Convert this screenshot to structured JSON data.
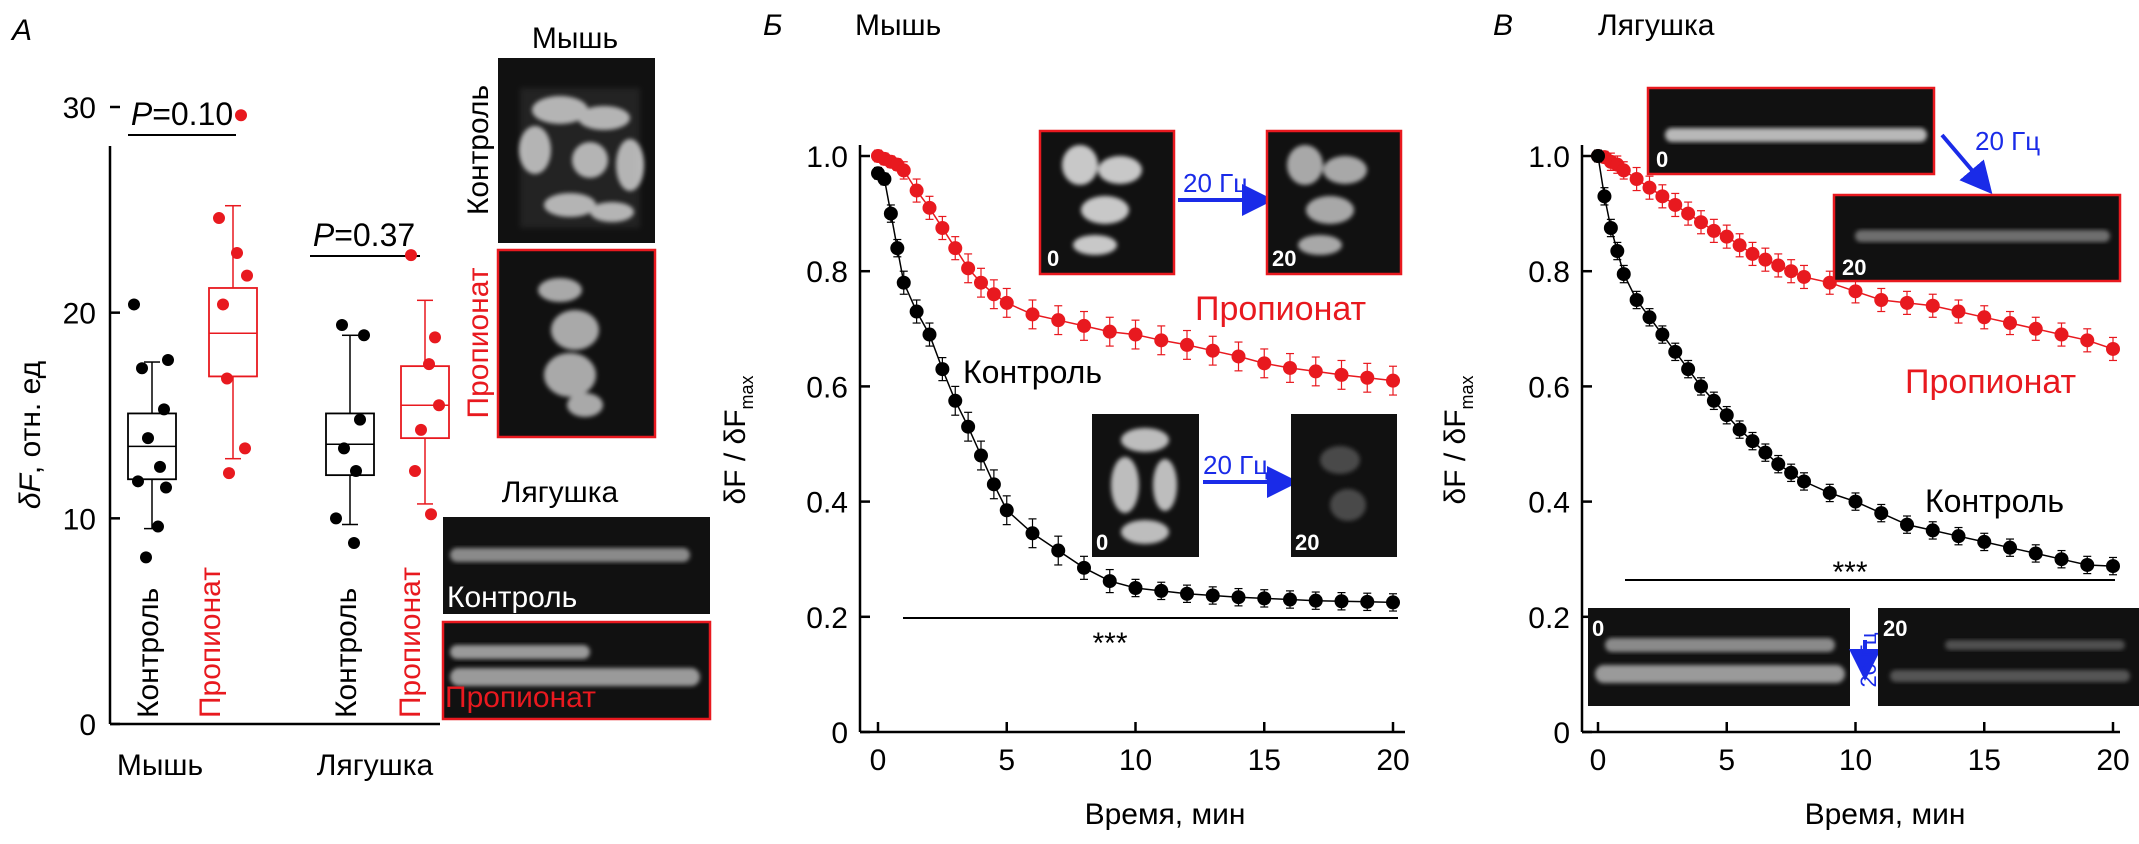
{
  "colors": {
    "control": "#000000",
    "propionate": "#e8191f",
    "arrow": "#1a2be8",
    "photo_border": "#e8191f"
  },
  "panel_a": {
    "letter": "А",
    "ylabel_var": "δF",
    "ylabel_rest": ", отн. ед",
    "yticks": [
      "0",
      "10",
      "20",
      "30"
    ],
    "groups": [
      "Мышь",
      "Лягушка"
    ],
    "bar_labels": [
      "Контроль",
      "Пропионат",
      "Контроль",
      "Пропионат"
    ],
    "p_values": [
      {
        "var": "P",
        "rest": "=0.10"
      },
      {
        "var": "P",
        "rest": "=0.37"
      }
    ],
    "images": {
      "mouse_title": "Мышь",
      "mouse_control": "Контроль",
      "mouse_propionate": "Пропионат",
      "frog_title": "Лягушка",
      "frog_control": "Контроль",
      "frog_propionate": "Пропионат"
    }
  },
  "panel_b": {
    "letter": "Б",
    "title": "Мышь",
    "series_labels": {
      "propionate": "Пропионат",
      "control": "Контроль"
    },
    "stim": "20 Гц",
    "frame_start": "0",
    "frame_end": "20",
    "significance": "***"
  },
  "panel_c": {
    "letter": "В",
    "title": "Лягушка",
    "series_labels": {
      "propionate": "Пропионат",
      "control": "Контроль"
    },
    "stim": "20 Гц",
    "frame_start": "0",
    "frame_end": "20",
    "significance": "***"
  },
  "shared": {
    "ylabel_main": "δF / δF",
    "ylabel_sub": "max",
    "xlabel": "Время, мин",
    "yticks": [
      "0",
      "0.2",
      "0.4",
      "0.6",
      "0.8",
      "1.0"
    ],
    "xticks": [
      "0",
      "5",
      "10",
      "15",
      "20"
    ]
  },
  "chart_data": [
    {
      "type": "box",
      "title": "",
      "ylabel": "δF, отн. ед",
      "ylim": [
        0,
        30
      ],
      "groups": [
        {
          "species": "Мышь",
          "condition": "Контроль",
          "whisker_low": 9.5,
          "q1": 11.9,
          "median": 13.5,
          "q3": 15.1,
          "whisker_high": 17.6,
          "mean": 13.5,
          "points": [
            20.4,
            17.7,
            17.3,
            15.3,
            13.9,
            12.5,
            11.8,
            11.5,
            9.6,
            8.1
          ]
        },
        {
          "species": "Мышь",
          "condition": "Пропионат",
          "whisker_low": 12.9,
          "q1": 16.9,
          "median": 19.0,
          "q3": 21.2,
          "whisker_high": 25.2,
          "mean": 19.0,
          "points": [
            29.6,
            24.6,
            22.9,
            21.8,
            20.4,
            16.8,
            13.4,
            12.2
          ]
        },
        {
          "species": "Лягушка",
          "condition": "Контроль",
          "whisker_low": 9.7,
          "q1": 12.1,
          "median": 13.6,
          "q3": 15.1,
          "whisker_high": 18.9,
          "mean": 13.6,
          "points": [
            19.4,
            18.9,
            14.8,
            13.4,
            12.3,
            10.0,
            8.8
          ]
        },
        {
          "species": "Лягушка",
          "condition": "Пропионат",
          "whisker_low": 10.7,
          "q1": 13.9,
          "median": 15.5,
          "q3": 17.4,
          "whisker_high": 20.6,
          "mean": 15.5,
          "points": [
            22.8,
            18.8,
            17.5,
            15.5,
            14.3,
            12.3,
            10.2
          ]
        }
      ],
      "comparisons": [
        {
          "groups": [
            "Мышь Контроль",
            "Мышь Пропионат"
          ],
          "p": "P=0.10"
        },
        {
          "groups": [
            "Лягушка Контроль",
            "Лягушка Пропионат"
          ],
          "p": "P=0.37"
        }
      ]
    },
    {
      "type": "line",
      "title": "Мышь",
      "xlabel": "Время, мин",
      "ylabel": "δF / δFmax",
      "xlim": [
        0,
        20
      ],
      "ylim": [
        0,
        1.05
      ],
      "series": [
        {
          "name": "Пропионат",
          "x": [
            0,
            0.25,
            0.5,
            0.75,
            1,
            1.5,
            2,
            2.5,
            3,
            3.5,
            4,
            4.5,
            5,
            6,
            7,
            8,
            9,
            10,
            11,
            12,
            13,
            14,
            15,
            16,
            17,
            18,
            19,
            20
          ],
          "y": [
            1.0,
            0.995,
            0.99,
            0.985,
            0.975,
            0.94,
            0.91,
            0.875,
            0.84,
            0.805,
            0.78,
            0.76,
            0.745,
            0.725,
            0.715,
            0.705,
            0.695,
            0.69,
            0.68,
            0.672,
            0.662,
            0.652,
            0.64,
            0.632,
            0.626,
            0.62,
            0.615,
            0.61
          ],
          "err": [
            0.01,
            0.01,
            0.01,
            0.01,
            0.015,
            0.02,
            0.02,
            0.02,
            0.02,
            0.025,
            0.025,
            0.025,
            0.025,
            0.025,
            0.025,
            0.025,
            0.025,
            0.025,
            0.025,
            0.025,
            0.025,
            0.025,
            0.025,
            0.025,
            0.025,
            0.025,
            0.025,
            0.025
          ]
        },
        {
          "name": "Контроль",
          "x": [
            0,
            0.25,
            0.5,
            0.75,
            1,
            1.5,
            2,
            2.5,
            3,
            3.5,
            4,
            4.5,
            5,
            6,
            7,
            8,
            9,
            10,
            11,
            12,
            13,
            14,
            15,
            16,
            17,
            18,
            19,
            20
          ],
          "y": [
            0.97,
            0.96,
            0.9,
            0.84,
            0.78,
            0.73,
            0.69,
            0.63,
            0.575,
            0.53,
            0.48,
            0.43,
            0.385,
            0.345,
            0.315,
            0.285,
            0.262,
            0.25,
            0.245,
            0.24,
            0.237,
            0.234,
            0.232,
            0.23,
            0.228,
            0.227,
            0.226,
            0.225
          ],
          "err": [
            0.01,
            0.01,
            0.015,
            0.015,
            0.02,
            0.02,
            0.02,
            0.02,
            0.025,
            0.025,
            0.025,
            0.025,
            0.025,
            0.025,
            0.025,
            0.02,
            0.02,
            0.015,
            0.015,
            0.015,
            0.015,
            0.015,
            0.015,
            0.015,
            0.015,
            0.015,
            0.015,
            0.015
          ]
        }
      ],
      "annotation": {
        "text": "***",
        "x_from": 1,
        "x_to": 20,
        "y": 0.195
      }
    },
    {
      "type": "line",
      "title": "Лягушка",
      "xlabel": "Время, мин",
      "ylabel": "δF / δFmax",
      "xlim": [
        0,
        20
      ],
      "ylim": [
        0,
        1.05
      ],
      "series": [
        {
          "name": "Пропионат",
          "x": [
            0,
            0.25,
            0.5,
            0.75,
            1,
            1.5,
            2,
            2.5,
            3,
            3.5,
            4,
            4.5,
            5,
            5.5,
            6,
            6.5,
            7,
            7.5,
            8,
            9,
            10,
            11,
            12,
            13,
            14,
            15,
            16,
            17,
            18,
            19,
            20
          ],
          "y": [
            1.0,
            0.998,
            0.99,
            0.985,
            0.975,
            0.96,
            0.945,
            0.93,
            0.915,
            0.9,
            0.885,
            0.87,
            0.86,
            0.845,
            0.83,
            0.82,
            0.81,
            0.8,
            0.79,
            0.78,
            0.765,
            0.75,
            0.745,
            0.74,
            0.73,
            0.72,
            0.71,
            0.7,
            0.69,
            0.68,
            0.665
          ],
          "err": [
            0.01,
            0.01,
            0.015,
            0.015,
            0.015,
            0.02,
            0.02,
            0.02,
            0.02,
            0.02,
            0.02,
            0.02,
            0.02,
            0.02,
            0.02,
            0.02,
            0.02,
            0.02,
            0.02,
            0.02,
            0.02,
            0.02,
            0.02,
            0.02,
            0.02,
            0.02,
            0.02,
            0.02,
            0.02,
            0.02,
            0.02
          ]
        },
        {
          "name": "Контроль",
          "x": [
            0,
            0.25,
            0.5,
            0.75,
            1,
            1.5,
            2,
            2.5,
            3,
            3.5,
            4,
            4.5,
            5,
            5.5,
            6,
            6.5,
            7,
            7.5,
            8,
            9,
            10,
            11,
            12,
            13,
            14,
            15,
            16,
            17,
            18,
            19,
            20
          ],
          "y": [
            1.0,
            0.93,
            0.875,
            0.835,
            0.795,
            0.75,
            0.72,
            0.69,
            0.66,
            0.63,
            0.6,
            0.575,
            0.55,
            0.525,
            0.505,
            0.485,
            0.465,
            0.45,
            0.435,
            0.415,
            0.4,
            0.38,
            0.36,
            0.35,
            0.34,
            0.33,
            0.32,
            0.31,
            0.3,
            0.29,
            0.288
          ],
          "err": [
            0.01,
            0.015,
            0.015,
            0.015,
            0.015,
            0.015,
            0.015,
            0.015,
            0.015,
            0.015,
            0.015,
            0.015,
            0.015,
            0.015,
            0.015,
            0.015,
            0.015,
            0.015,
            0.015,
            0.015,
            0.015,
            0.015,
            0.015,
            0.015,
            0.015,
            0.015,
            0.015,
            0.015,
            0.015,
            0.015,
            0.015
          ]
        }
      ],
      "annotation": {
        "text": "***",
        "x_from": 1,
        "x_to": 20,
        "y": 0.27
      }
    }
  ]
}
